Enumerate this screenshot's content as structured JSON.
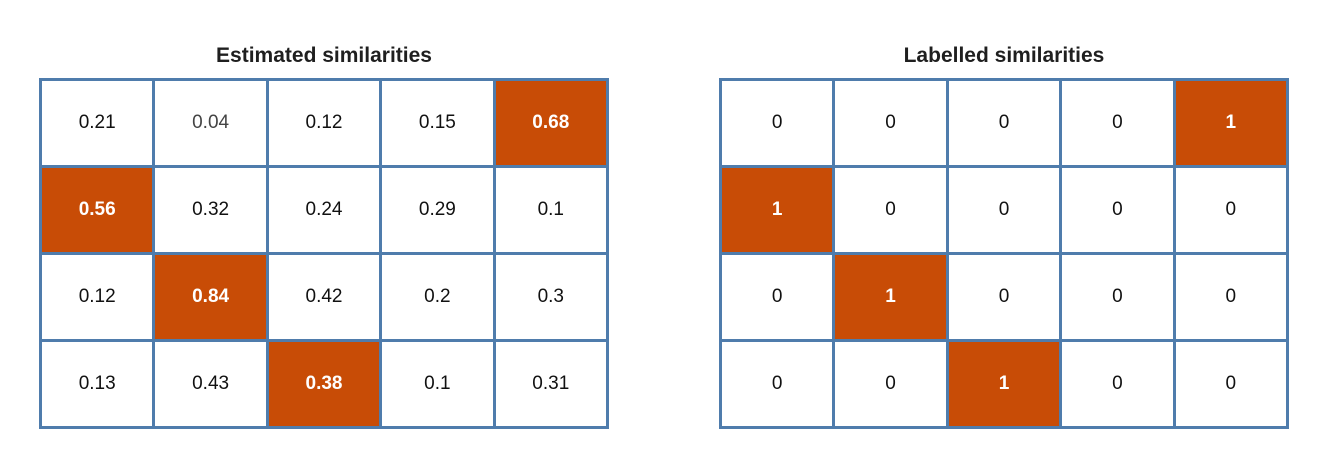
{
  "colors": {
    "grid_border": "#4f7cac",
    "highlight": "#c84c06",
    "cell_bg": "#ffffff"
  },
  "left": {
    "title": "Estimated similarities",
    "rows": [
      [
        "0.21",
        "0.04",
        "0.12",
        "0.15",
        "0.68"
      ],
      [
        "0.56",
        "0.32",
        "0.24",
        "0.29",
        "0.1"
      ],
      [
        "0.12",
        "0.84",
        "0.42",
        "0.2",
        "0.3"
      ],
      [
        "0.13",
        "0.43",
        "0.38",
        "0.1",
        "0.31"
      ]
    ],
    "highlighted": [
      [
        0,
        4
      ],
      [
        1,
        0
      ],
      [
        2,
        1
      ],
      [
        3,
        2
      ]
    ]
  },
  "right": {
    "title": "Labelled similarities",
    "rows": [
      [
        "0",
        "0",
        "0",
        "0",
        "1"
      ],
      [
        "1",
        "0",
        "0",
        "0",
        "0"
      ],
      [
        "0",
        "1",
        "0",
        "0",
        "0"
      ],
      [
        "0",
        "0",
        "1",
        "0",
        "0"
      ]
    ],
    "highlighted": [
      [
        0,
        4
      ],
      [
        1,
        0
      ],
      [
        2,
        1
      ],
      [
        3,
        2
      ]
    ]
  }
}
